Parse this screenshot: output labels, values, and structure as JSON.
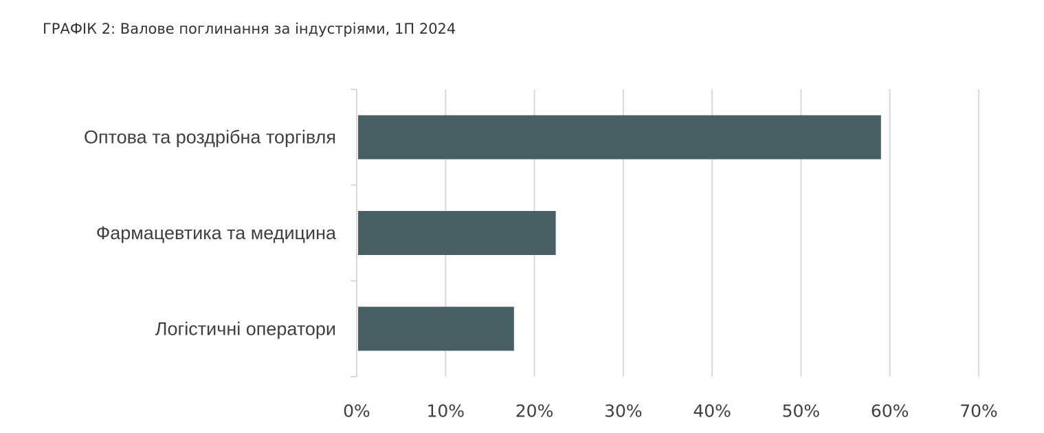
{
  "chart_data": {
    "type": "bar",
    "orientation": "horizontal",
    "title": "ГРАФІК 2: Валове поглинання за індустріями,  1П 2024",
    "categories": [
      "Оптова та роздрібна торгівля",
      "Фармацевтика та медицина",
      "Логістичні оператори"
    ],
    "values": [
      59,
      22.4,
      17.7
    ],
    "unit": "%",
    "xlim": [
      0,
      70
    ],
    "x_ticks": [
      "0%",
      "10%",
      "20%",
      "30%",
      "40%",
      "50%",
      "60%",
      "70%"
    ],
    "x_tick_values": [
      0,
      10,
      20,
      30,
      40,
      50,
      60,
      70
    ],
    "grid": true,
    "legend": "none",
    "bar_color": "#475f62",
    "grid_color": "#d9d9d9"
  }
}
